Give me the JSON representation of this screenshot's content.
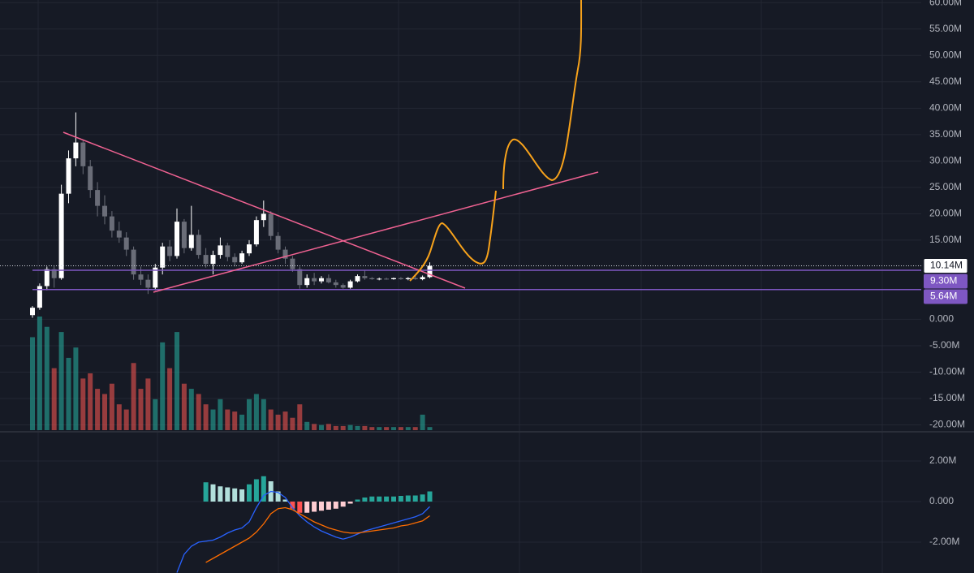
{
  "chart_data": [
    {
      "type": "candlestick",
      "ylim": [
        -21,
        60.5
      ],
      "yticks": [
        {
          "value": 60,
          "label": "60.00M"
        },
        {
          "value": 55,
          "label": "55.00M"
        },
        {
          "value": 50,
          "label": "50.00M"
        },
        {
          "value": 45,
          "label": "45.00M"
        },
        {
          "value": 40,
          "label": "40.00M"
        },
        {
          "value": 35,
          "label": "35.00M"
        },
        {
          "value": 30,
          "label": "30.00M"
        },
        {
          "value": 25,
          "label": "25.00M"
        },
        {
          "value": 20,
          "label": "20.00M"
        },
        {
          "value": 15,
          "label": "15.00M"
        },
        {
          "value": 0,
          "label": "0.000"
        },
        {
          "value": -5,
          "label": "-5.00M"
        },
        {
          "value": -10,
          "label": "-10.00M"
        },
        {
          "value": -15,
          "label": "-15.00M"
        },
        {
          "value": -20,
          "label": "-20.00M"
        }
      ],
      "up_color": "#ffffff",
      "down_color": "#6a6d78",
      "volume_up_color": "#26a69a",
      "volume_down_color": "#ef5350",
      "open": [
        0.8,
        2.2,
        6.3,
        9.5,
        7.8,
        23.8,
        30.5,
        33.5,
        29.0,
        24.5,
        21.5,
        19.5,
        16.8,
        15.5,
        13.2,
        8.5,
        7.5,
        6.0,
        9.8,
        13.8,
        12.0,
        18.5,
        13.5,
        16.0,
        12.2,
        10.5,
        12.2,
        14.0,
        11.8,
        10.8,
        12.5,
        14.2,
        18.8,
        20.0,
        15.8,
        13.2,
        11.5,
        9.5,
        6.5,
        7.8,
        7.2,
        7.8,
        7.0,
        6.5,
        6.0,
        7.2,
        8.2,
        7.8,
        7.6,
        7.7,
        7.6,
        7.8,
        7.6,
        7.8,
        7.6,
        8.0
      ],
      "high": [
        2.5,
        6.8,
        10.0,
        10.2,
        25.5,
        32.0,
        39.2,
        34.0,
        30.2,
        26.0,
        23.5,
        20.5,
        18.5,
        16.5,
        13.8,
        10.0,
        8.5,
        10.5,
        14.5,
        15.0,
        21.0,
        19.0,
        21.5,
        17.0,
        13.5,
        13.0,
        15.5,
        14.5,
        12.5,
        13.0,
        15.0,
        19.5,
        22.5,
        20.5,
        16.5,
        13.8,
        12.0,
        10.0,
        8.5,
        8.8,
        8.2,
        8.5,
        7.5,
        6.8,
        7.5,
        8.5,
        9.3,
        8.0,
        7.9,
        7.9,
        7.9,
        8.0,
        8.0,
        8.2,
        8.3,
        10.8
      ],
      "low": [
        0.3,
        1.8,
        5.5,
        6.0,
        7.5,
        22.0,
        29.0,
        27.5,
        23.0,
        19.5,
        18.0,
        15.5,
        14.5,
        12.0,
        7.5,
        6.5,
        4.8,
        5.5,
        8.5,
        11.0,
        11.5,
        12.5,
        13.0,
        11.5,
        9.8,
        8.5,
        11.5,
        11.0,
        10.0,
        10.5,
        12.0,
        13.8,
        17.5,
        15.0,
        12.5,
        10.5,
        9.0,
        5.8,
        6.0,
        6.5,
        6.8,
        6.8,
        6.0,
        5.8,
        5.8,
        7.0,
        7.5,
        7.5,
        7.4,
        7.5,
        7.5,
        7.5,
        7.4,
        7.5,
        7.4,
        7.8
      ],
      "close": [
        2.2,
        6.3,
        9.5,
        7.8,
        23.8,
        30.5,
        33.5,
        29.0,
        24.5,
        21.5,
        19.5,
        16.8,
        15.5,
        13.2,
        8.5,
        7.5,
        6.0,
        9.8,
        13.8,
        12.0,
        18.5,
        13.5,
        16.0,
        12.2,
        10.5,
        12.2,
        14.0,
        11.8,
        10.8,
        12.5,
        14.2,
        18.8,
        20.0,
        15.8,
        13.2,
        11.5,
        9.5,
        6.5,
        7.8,
        7.2,
        7.8,
        7.0,
        6.5,
        6.0,
        7.2,
        8.2,
        7.8,
        7.6,
        7.7,
        7.6,
        7.8,
        7.6,
        7.8,
        7.6,
        8.0,
        10.14
      ],
      "volume": [
        90,
        110,
        100,
        60,
        95,
        70,
        80,
        50,
        55,
        40,
        35,
        45,
        25,
        20,
        65,
        40,
        50,
        30,
        85,
        60,
        95,
        45,
        40,
        35,
        25,
        20,
        30,
        20,
        18,
        15,
        30,
        35,
        30,
        20,
        15,
        18,
        12,
        25,
        8,
        6,
        5,
        6,
        4,
        4,
        5,
        4,
        4,
        3,
        3,
        3,
        3,
        3,
        3,
        3,
        15,
        3
      ],
      "price_labels": [
        {
          "value": 10.14,
          "label": "10.14M",
          "color": "#ffffff"
        },
        {
          "value": 9.3,
          "label": "9.30M",
          "color": "#7e57c2"
        },
        {
          "value": 5.64,
          "label": "5.64M",
          "color": "#7e57c2"
        }
      ]
    },
    {
      "type": "macd",
      "ylim": [
        -3.52,
        3.44
      ],
      "yticks": [
        {
          "value": 2,
          "label": "2.00M"
        },
        {
          "value": 0,
          "label": "0.000"
        },
        {
          "value": -2,
          "label": "-2.00M"
        }
      ],
      "histogram": [
        null,
        null,
        null,
        null,
        null,
        null,
        null,
        null,
        null,
        null,
        null,
        null,
        null,
        null,
        null,
        null,
        null,
        null,
        null,
        null,
        null,
        null,
        null,
        null,
        0.95,
        0.85,
        0.75,
        0.7,
        0.65,
        0.6,
        0.85,
        1.1,
        1.25,
        1.0,
        0.5,
        0.1,
        -0.35,
        -0.55,
        -0.55,
        -0.5,
        -0.45,
        -0.4,
        -0.35,
        -0.25,
        -0.1,
        0.1,
        0.2,
        0.25,
        0.25,
        0.25,
        0.25,
        0.28,
        0.3,
        0.3,
        0.35,
        0.5
      ],
      "macd": [
        null,
        null,
        null,
        null,
        null,
        null,
        null,
        null,
        null,
        null,
        null,
        null,
        null,
        null,
        null,
        null,
        null,
        null,
        null,
        null,
        -3.5,
        -2.6,
        -2.2,
        -2.0,
        -1.95,
        -1.9,
        -1.75,
        -1.55,
        -1.4,
        -1.3,
        -1.0,
        -0.3,
        0.3,
        0.5,
        0.45,
        0.2,
        -0.3,
        -0.7,
        -1.0,
        -1.25,
        -1.45,
        -1.6,
        -1.75,
        -1.85,
        -1.75,
        -1.6,
        -1.45,
        -1.35,
        -1.25,
        -1.15,
        -1.05,
        -0.95,
        -0.85,
        -0.75,
        -0.6,
        -0.25
      ],
      "signal": [
        null,
        null,
        null,
        null,
        null,
        null,
        null,
        null,
        null,
        null,
        null,
        null,
        null,
        null,
        null,
        null,
        null,
        null,
        null,
        null,
        null,
        null,
        null,
        null,
        -3.0,
        -2.8,
        -2.6,
        -2.4,
        -2.2,
        -2.0,
        -1.8,
        -1.5,
        -1.1,
        -0.6,
        -0.35,
        -0.3,
        -0.4,
        -0.6,
        -0.8,
        -1.0,
        -1.15,
        -1.3,
        -1.4,
        -1.5,
        -1.55,
        -1.55,
        -1.5,
        -1.45,
        -1.4,
        -1.35,
        -1.3,
        -1.2,
        -1.15,
        -1.05,
        -0.95,
        -0.7
      ],
      "macd_color": "#2962ff",
      "signal_color": "#ff6d00",
      "hist_colors": [
        "#26a69a",
        "#b2dfdb",
        "#ffcdd2",
        "#ff5252"
      ]
    }
  ]
}
